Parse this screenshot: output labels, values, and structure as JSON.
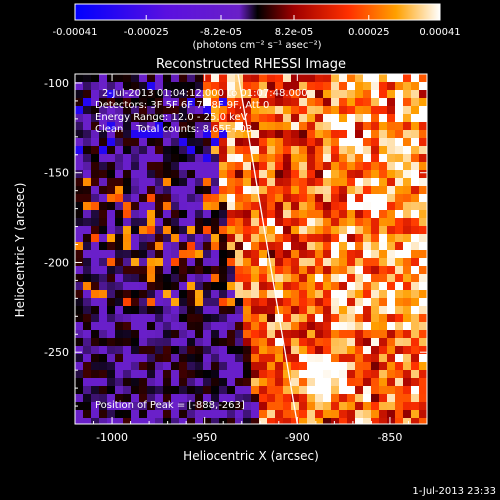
{
  "chart_data": {
    "type": "heatmap",
    "title": "Reconstructed RHESSI Image",
    "xlabel": "Heliocentric X (arcsec)",
    "ylabel": "Heliocentric Y (arcsec)",
    "xlim": [
      -1020,
      -830
    ],
    "ylim": [
      -290,
      -95
    ],
    "x_ticks": [
      -1000,
      -950,
      -900,
      -850
    ],
    "y_ticks": [
      -100,
      -150,
      -200,
      -250
    ],
    "colorbar": {
      "unit_label": "(photons cm⁻² s⁻¹ asec⁻²)",
      "min": -0.00041,
      "max": 0.00041,
      "tick_labels": [
        "-0.00041",
        "-0.00025",
        "-8.2e-05",
        "8.2e-05",
        "0.00025",
        "0.00041"
      ],
      "tick_values": [
        -0.00041,
        -0.00025,
        -8.2e-05,
        8.2e-05,
        0.00025,
        0.00041
      ]
    },
    "annotations": {
      "time_range": "2-Jul-2013 01:04:12.000 to 01:07:48.000",
      "detectors": "Detectors: 3F 5F 6F 7F 8F 9F, Att 0",
      "energy_range": "Energy Range: 12.0 - 25.0 keV",
      "method_counts": "Clean    Total counts: 8.65E+03",
      "peak": "Position of Peak = [-888,-263]"
    },
    "limb_line": [
      {
        "x": -932,
        "y": -95
      },
      {
        "x": -900,
        "y": -290
      }
    ],
    "peak_position": [
      -888,
      -263
    ],
    "grid": false,
    "timestamp": "1-Jul-2013 23:33"
  }
}
